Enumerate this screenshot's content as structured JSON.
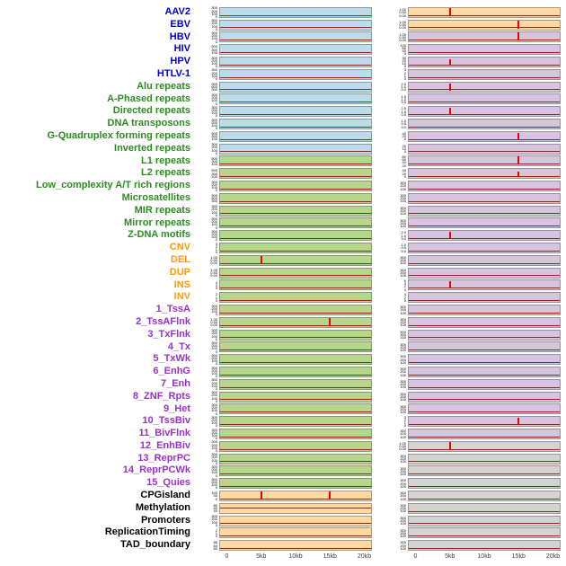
{
  "colors": {
    "label": {
      "virus": "#0000cd",
      "repeat": "#2e8b22",
      "sv": "#ff9a00",
      "chromhmm": "#9932cc",
      "other": "#000000"
    },
    "panel": {
      "blue": "#bcdcec",
      "green": "#b5d68b",
      "orange": "#ffd9a3",
      "purple": "#d7c5df",
      "gray": "#d3d3d3"
    },
    "baseline": "#8b2a1a",
    "spike": "#f00000",
    "axis_text": "#404040"
  },
  "chart_data": {
    "type": "line",
    "description": "Grid of per-feature density sparklines over a 0-20kb window; two panel columns share the same x axis",
    "x_ticks": [
      "0",
      "5kb",
      "10kb",
      "15kb",
      "20kb"
    ],
    "x_range_kb": [
      0,
      20
    ],
    "rows": [
      {
        "label": "AAV2",
        "group": "virus",
        "left": {
          "bg": "blue",
          "yticks": "300\n200\n100\n0",
          "spikes": []
        },
        "right": {
          "bg": "orange",
          "yticks": "1.00\n0.50\n0.00",
          "spikes": [
            {
              "kb": 5,
              "h": 0.9
            }
          ]
        }
      },
      {
        "label": "EBV",
        "group": "virus",
        "left": {
          "bg": "blue",
          "yticks": "300\n200\n100\n0",
          "spikes": []
        },
        "right": {
          "bg": "orange",
          "yticks": "1.00\n0.50\n0.00",
          "spikes": [
            {
              "kb": 15,
              "h": 0.9
            }
          ]
        }
      },
      {
        "label": "HBV",
        "group": "virus",
        "left": {
          "bg": "blue",
          "yticks": "300\n200\n100\n0",
          "spikes": []
        },
        "right": {
          "bg": "purple",
          "yticks": "1.00\n0.50\n0.00",
          "spikes": [
            {
              "kb": 15,
              "h": 0.9
            }
          ]
        }
      },
      {
        "label": "HIV",
        "group": "virus",
        "left": {
          "bg": "blue",
          "yticks": "500\n300\n100",
          "spikes": []
        },
        "right": {
          "bg": "purple",
          "yticks": "120\n80\n40\n0",
          "spikes": []
        }
      },
      {
        "label": "HPV",
        "group": "virus",
        "left": {
          "bg": "blue",
          "yticks": "300\n200\n100\n0",
          "spikes": []
        },
        "right": {
          "bg": "purple",
          "yticks": "30\n20\n10\n0",
          "spikes": [
            {
              "kb": 5,
              "h": 0.75
            }
          ]
        }
      },
      {
        "label": "HTLV-1",
        "group": "virus",
        "left": {
          "bg": "blue",
          "yticks": "300\n200\n100\n0",
          "spikes": []
        },
        "right": {
          "bg": "purple",
          "yticks": "3\n2\n1\n0",
          "spikes": []
        }
      },
      {
        "label": "Alu repeats",
        "group": "repeat",
        "left": {
          "bg": "blue",
          "yticks": "900\n600\n300",
          "spikes": []
        },
        "right": {
          "bg": "purple",
          "yticks": "2.0\n1.0\n0.0",
          "spikes": [
            {
              "kb": 5,
              "h": 0.8
            }
          ]
        }
      },
      {
        "label": "A-Phased repeats",
        "group": "repeat",
        "left": {
          "bg": "blue",
          "yticks": "300\n200\n100\n0",
          "spikes": []
        },
        "right": {
          "bg": "purple",
          "yticks": "1.5\n1.0\n0.5",
          "spikes": []
        }
      },
      {
        "label": "Directed repeats",
        "group": "repeat",
        "left": {
          "bg": "blue",
          "yticks": "300\n200\n100\n0",
          "spikes": []
        },
        "right": {
          "bg": "purple",
          "yticks": "2.5\n1.5\n0.5",
          "spikes": [
            {
              "kb": 5,
              "h": 0.8
            }
          ]
        }
      },
      {
        "label": "DNA transposons",
        "group": "repeat",
        "left": {
          "bg": "blue",
          "yticks": "300\n200\n100\n0",
          "spikes": []
        },
        "right": {
          "bg": "purple",
          "yticks": "1.0\n0.5\n0.0",
          "spikes": []
        }
      },
      {
        "label": "G-Quadruplex forming repeats",
        "group": "repeat",
        "left": {
          "bg": "blue",
          "yticks": "500\n300\n100",
          "spikes": []
        },
        "right": {
          "bg": "purple",
          "yticks": "40\n20\n0",
          "spikes": [
            {
              "kb": 15,
              "h": 0.8
            }
          ]
        }
      },
      {
        "label": "Inverted repeats",
        "group": "repeat",
        "left": {
          "bg": "blue",
          "yticks": "300\n200\n100\n0",
          "spikes": []
        },
        "right": {
          "bg": "purple",
          "yticks": "20\n10\n0",
          "spikes": []
        }
      },
      {
        "label": "L1 repeats",
        "group": "repeat",
        "left": {
          "bg": "green",
          "yticks": "500\n300\n100",
          "spikes": []
        },
        "right": {
          "bg": "purple",
          "yticks": "80\n60\n40\n20",
          "spikes": [
            {
              "kb": 15,
              "h": 0.9
            }
          ]
        }
      },
      {
        "label": "L2 repeats",
        "group": "repeat",
        "left": {
          "bg": "green",
          "yticks": "500\n300\n100",
          "spikes": []
        },
        "right": {
          "bg": "purple",
          "yticks": "40\n20\n0",
          "spikes": [
            {
              "kb": 15,
              "h": 0.6
            }
          ]
        }
      },
      {
        "label": "Low_complexity A/T rich regions",
        "group": "repeat",
        "left": {
          "bg": "green",
          "yticks": "300\n200\n100\n0",
          "spikes": []
        },
        "right": {
          "bg": "purple",
          "yticks": "300\n200\n100",
          "spikes": []
        }
      },
      {
        "label": "Microsatellites",
        "group": "repeat",
        "left": {
          "bg": "green",
          "yticks": "900\n600\n300",
          "spikes": []
        },
        "right": {
          "bg": "purple",
          "yticks": "300\n200\n100",
          "spikes": []
        }
      },
      {
        "label": "MIR repeats",
        "group": "repeat",
        "left": {
          "bg": "green",
          "yticks": "300\n200\n100\n0",
          "spikes": []
        },
        "right": {
          "bg": "purple",
          "yticks": "300\n200\n100",
          "spikes": []
        }
      },
      {
        "label": "Mirror repeats",
        "group": "repeat",
        "left": {
          "bg": "green",
          "yticks": "300\n200\n100\n0",
          "spikes": []
        },
        "right": {
          "bg": "purple",
          "yticks": "300\n200\n100",
          "spikes": []
        }
      },
      {
        "label": "Z-DNA motifs",
        "group": "repeat",
        "left": {
          "bg": "green",
          "yticks": "300\n200\n100\n0",
          "spikes": []
        },
        "right": {
          "bg": "purple",
          "yticks": "2.0\n1.0\n0.0",
          "spikes": [
            {
              "kb": 5,
              "h": 0.8
            }
          ]
        }
      },
      {
        "label": "CNV",
        "group": "sv",
        "left": {
          "bg": "green",
          "yticks": "3\n2\n1\n0",
          "spikes": []
        },
        "right": {
          "bg": "purple",
          "yticks": "1.0\n0.5\n0.0",
          "spikes": []
        }
      },
      {
        "label": "DEL",
        "group": "sv",
        "left": {
          "bg": "green",
          "yticks": "1.00\n0.50\n0.00",
          "spikes": [
            {
              "kb": 5,
              "h": 0.9
            }
          ]
        },
        "right": {
          "bg": "purple",
          "yticks": "300\n200\n100",
          "spikes": []
        }
      },
      {
        "label": "DUP",
        "group": "sv",
        "left": {
          "bg": "green",
          "yticks": "1.00\n0.50\n0.00",
          "spikes": []
        },
        "right": {
          "bg": "purple",
          "yticks": "300\n200\n100",
          "spikes": []
        }
      },
      {
        "label": "INS",
        "group": "sv",
        "left": {
          "bg": "green",
          "yticks": "4\n2\n0",
          "spikes": []
        },
        "right": {
          "bg": "purple",
          "yticks": "6\n4\n2\n0",
          "spikes": [
            {
              "kb": 5,
              "h": 0.8
            }
          ]
        }
      },
      {
        "label": "INV",
        "group": "sv",
        "left": {
          "bg": "green",
          "yticks": "2\n1\n0",
          "spikes": []
        },
        "right": {
          "bg": "purple",
          "yticks": "4\n2\n0",
          "spikes": []
        }
      },
      {
        "label": "1_TssA",
        "group": "chromhmm",
        "left": {
          "bg": "green",
          "yticks": "300\n200\n100\n0",
          "spikes": []
        },
        "right": {
          "bg": "purple",
          "yticks": "300\n200\n100",
          "spikes": []
        }
      },
      {
        "label": "2_TssAFlnk",
        "group": "chromhmm",
        "left": {
          "bg": "green",
          "yticks": "1.00\n0.50\n0.00",
          "spikes": [
            {
              "kb": 15,
              "h": 0.9
            }
          ]
        },
        "right": {
          "bg": "purple",
          "yticks": "300\n200\n100",
          "spikes": []
        }
      },
      {
        "label": "3_TxFlnk",
        "group": "chromhmm",
        "left": {
          "bg": "green",
          "yticks": "300\n200\n100\n0",
          "spikes": []
        },
        "right": {
          "bg": "purple",
          "yticks": "500\n300\n100",
          "spikes": []
        }
      },
      {
        "label": "4_Tx",
        "group": "chromhmm",
        "left": {
          "bg": "green",
          "yticks": "300\n200\n100\n0",
          "spikes": []
        },
        "right": {
          "bg": "purple",
          "yticks": "300\n200\n100",
          "spikes": []
        }
      },
      {
        "label": "5_TxWk",
        "group": "chromhmm",
        "left": {
          "bg": "green",
          "yticks": "300\n200\n100\n0",
          "spikes": []
        },
        "right": {
          "bg": "purple",
          "yticks": "300\n200\n100",
          "spikes": []
        }
      },
      {
        "label": "6_EnhG",
        "group": "chromhmm",
        "left": {
          "bg": "green",
          "yticks": "300\n200\n100\n0",
          "spikes": []
        },
        "right": {
          "bg": "purple",
          "yticks": "300\n200\n100",
          "spikes": []
        }
      },
      {
        "label": "7_Enh",
        "group": "chromhmm",
        "left": {
          "bg": "green",
          "yticks": "300\n200\n100\n0",
          "spikes": []
        },
        "right": {
          "bg": "purple",
          "yticks": "300\n200\n100",
          "spikes": []
        }
      },
      {
        "label": "8_ZNF_Rpts",
        "group": "chromhmm",
        "left": {
          "bg": "green",
          "yticks": "300\n200\n100\n0",
          "spikes": []
        },
        "right": {
          "bg": "purple",
          "yticks": "300\n200\n100",
          "spikes": []
        }
      },
      {
        "label": "9_Het",
        "group": "chromhmm",
        "left": {
          "bg": "green",
          "yticks": "300\n200\n100\n0",
          "spikes": []
        },
        "right": {
          "bg": "purple",
          "yticks": "300\n200\n100",
          "spikes": []
        }
      },
      {
        "label": "10_TssBiv",
        "group": "chromhmm",
        "left": {
          "bg": "green",
          "yticks": "300\n200\n100\n0",
          "spikes": []
        },
        "right": {
          "bg": "purple",
          "yticks": "3\n2\n1\n0",
          "spikes": [
            {
              "kb": 15,
              "h": 0.85
            }
          ]
        }
      },
      {
        "label": "11_BivFlnk",
        "group": "chromhmm",
        "left": {
          "bg": "green",
          "yticks": "300\n200\n100\n0",
          "spikes": []
        },
        "right": {
          "bg": "purple",
          "yticks": "300\n200\n100",
          "spikes": []
        }
      },
      {
        "label": "12_EnhBiv",
        "group": "chromhmm",
        "left": {
          "bg": "green",
          "yticks": "300\n200\n100\n0",
          "spikes": []
        },
        "right": {
          "bg": "gray",
          "yticks": "1.00\n0.50\n0.00",
          "spikes": [
            {
              "kb": 5,
              "h": 0.85
            }
          ]
        }
      },
      {
        "label": "13_ReprPC",
        "group": "chromhmm",
        "left": {
          "bg": "green",
          "yticks": "300\n200\n100\n0",
          "spikes": []
        },
        "right": {
          "bg": "gray",
          "yticks": "300\n200\n100",
          "spikes": []
        }
      },
      {
        "label": "14_ReprPCWk",
        "group": "chromhmm",
        "left": {
          "bg": "green",
          "yticks": "300\n200\n100\n0",
          "spikes": []
        },
        "right": {
          "bg": "gray",
          "yticks": "300\n200\n100",
          "spikes": []
        }
      },
      {
        "label": "15_Quies",
        "group": "chromhmm",
        "left": {
          "bg": "green",
          "yticks": "300\n200\n100\n0",
          "spikes": []
        },
        "right": {
          "bg": "gray",
          "yticks": "300\n200\n100",
          "spikes": []
        }
      },
      {
        "label": "CPGisland",
        "group": "other",
        "left": {
          "bg": "orange",
          "yticks": "100\n50\n0",
          "spikes": [
            {
              "kb": 5,
              "h": 0.9
            },
            {
              "kb": 15,
              "h": 0.85
            }
          ]
        },
        "right": {
          "bg": "gray",
          "yticks": "300\n200\n100",
          "spikes": []
        }
      },
      {
        "label": "Methylation",
        "group": "other",
        "left": {
          "bg": "orange",
          "yticks": "80\n60\n40",
          "spikes": [],
          "baseline": 0.45
        },
        "right": {
          "bg": "gray",
          "yticks": "300\n200\n100",
          "spikes": []
        }
      },
      {
        "label": "Promoters",
        "group": "other",
        "left": {
          "bg": "orange",
          "yticks": "300\n200\n100\n0",
          "spikes": []
        },
        "right": {
          "bg": "gray",
          "yticks": "300\n200\n100",
          "spikes": []
        }
      },
      {
        "label": "ReplicationTiming",
        "group": "other",
        "left": {
          "bg": "orange",
          "yticks": "2\n1\n0",
          "spikes": []
        },
        "right": {
          "bg": "gray",
          "yticks": "300\n200\n100",
          "spikes": []
        }
      },
      {
        "label": "TAD_boundary",
        "group": "other",
        "left": {
          "bg": "orange",
          "yticks": "88\n84\n80",
          "spikes": []
        },
        "right": {
          "bg": "gray",
          "yticks": "300\n200\n100",
          "spikes": []
        }
      }
    ]
  }
}
